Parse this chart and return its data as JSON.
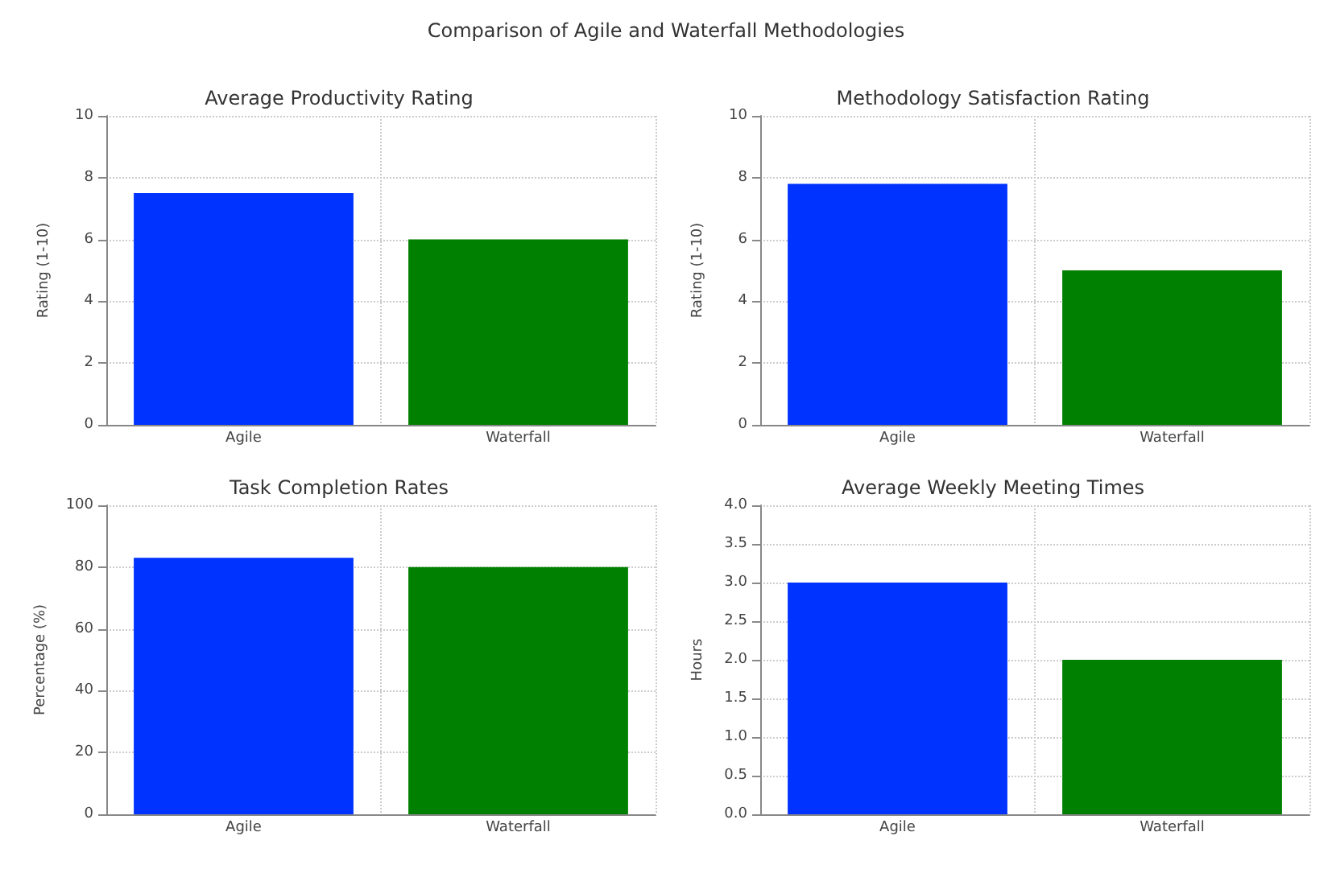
{
  "chart_data": [
    {
      "type": "bar",
      "title": "Average Productivity Rating",
      "ylabel": "Rating (1-10)",
      "categories": [
        "Agile",
        "Waterfall"
      ],
      "values": [
        7.5,
        6
      ],
      "colors": [
        "#0033ff",
        "#008000"
      ],
      "ylim": [
        0,
        10
      ],
      "yticks": [
        0,
        2,
        4,
        6,
        8,
        10
      ],
      "grid": true,
      "annotations": [
        "Comparison of Agile and Waterfall Methodologies"
      ]
    },
    {
      "type": "bar",
      "title": "Methodology Satisfaction Rating",
      "ylabel": "Rating (1-10)",
      "categories": [
        "Agile",
        "Waterfall"
      ],
      "values": [
        7.8,
        5
      ],
      "colors": [
        "#0033ff",
        "#008000"
      ],
      "ylim": [
        0,
        10
      ],
      "yticks": [
        0,
        2,
        4,
        6,
        8,
        10
      ],
      "grid": true
    },
    {
      "type": "bar",
      "title": "Task Completion Rates",
      "ylabel": "Percentage (%)",
      "categories": [
        "Agile",
        "Waterfall"
      ],
      "values": [
        83,
        80
      ],
      "colors": [
        "#0033ff",
        "#008000"
      ],
      "ylim": [
        0,
        100
      ],
      "yticks": [
        0,
        20,
        40,
        60,
        80,
        100
      ],
      "grid": true
    },
    {
      "type": "bar",
      "title": "Average Weekly Meeting Times",
      "ylabel": "Hours",
      "categories": [
        "Agile",
        "Waterfall"
      ],
      "values": [
        3,
        2
      ],
      "colors": [
        "#0033ff",
        "#008000"
      ],
      "ylim": [
        0,
        4
      ],
      "yticks": [
        {
          "value": 0,
          "label": "0.0"
        },
        {
          "value": 0.5,
          "label": "0.5"
        },
        {
          "value": 1,
          "label": "1.0"
        },
        {
          "value": 1.5,
          "label": "1.5"
        },
        {
          "value": 2,
          "label": "2.0"
        },
        {
          "value": 2.5,
          "label": "2.5"
        },
        {
          "value": 3,
          "label": "3.0"
        },
        {
          "value": 3.5,
          "label": "3.5"
        },
        {
          "value": 4,
          "label": "4.0"
        }
      ],
      "grid": true
    }
  ]
}
